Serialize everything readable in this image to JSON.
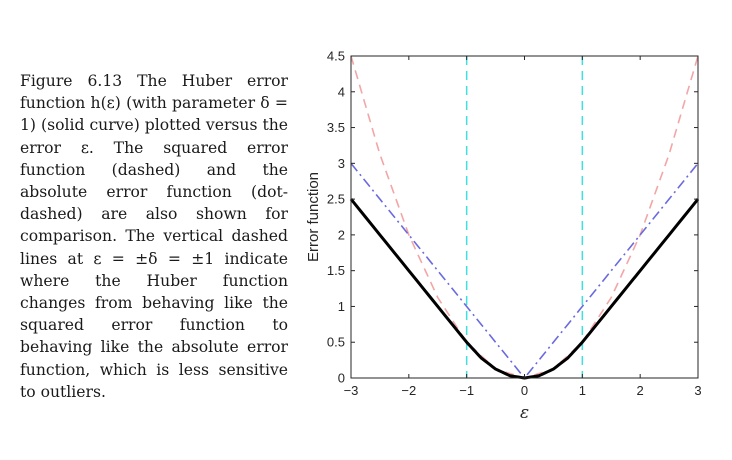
{
  "caption": {
    "label": "Figure 6.13",
    "text": "The Huber error function h(ε) (with parameter δ = 1) (solid curve) plotted versus the error ε. The squared error function (dashed) and the absolute error function (dot-dashed) are also shown for comparison. The vertical dashed lines at ε = ±δ = ±1 indicate where the Huber function changes from behaving like the squared error function to behaving like the absolute error function, which is less sensitive to outliers."
  },
  "chart_data": {
    "type": "line",
    "title": "",
    "xlabel": "ε",
    "ylabel": "Error function",
    "xlim": [
      -3,
      3
    ],
    "ylim": [
      0,
      4.5
    ],
    "xticks": [
      "−3",
      "−2",
      "−1",
      "0",
      "1",
      "2",
      "3"
    ],
    "yticks": [
      "0",
      "0.5",
      "1",
      "1.5",
      "2",
      "2.5",
      "3",
      "3.5",
      "4",
      "4.5"
    ],
    "grid": false,
    "series": [
      {
        "style": "dashed",
        "color": "#f2a6a6",
        "x": [
          -3,
          -2.5,
          -2,
          -1.5,
          -1,
          -0.5,
          0,
          0.5,
          1,
          1.5,
          2,
          2.5,
          3
        ],
        "y": [
          4.5,
          3.125,
          2,
          1.125,
          0.5,
          0.125,
          0,
          0.125,
          0.5,
          1.125,
          2,
          3.125,
          4.5
        ]
      },
      {
        "style": "dot-dashed",
        "color": "#6a6ae0",
        "x": [
          -3,
          0,
          3
        ],
        "y": [
          3,
          0,
          3
        ]
      },
      {
        "style": "solid",
        "color": "#000000",
        "x": [
          -3,
          -2,
          -1,
          -0.75,
          -0.5,
          -0.25,
          0,
          0.25,
          0.5,
          0.75,
          1,
          2,
          3
        ],
        "y": [
          2.5,
          1.5,
          0.5,
          0.28125,
          0.125,
          0.03125,
          0,
          0.03125,
          0.125,
          0.28125,
          0.5,
          1.5,
          2.5
        ]
      }
    ],
    "vlines": [
      {
        "x": -1,
        "style": "dashed",
        "color": "#3ee0e0"
      },
      {
        "x": 1,
        "style": "dashed",
        "color": "#3ee0e0"
      }
    ]
  }
}
